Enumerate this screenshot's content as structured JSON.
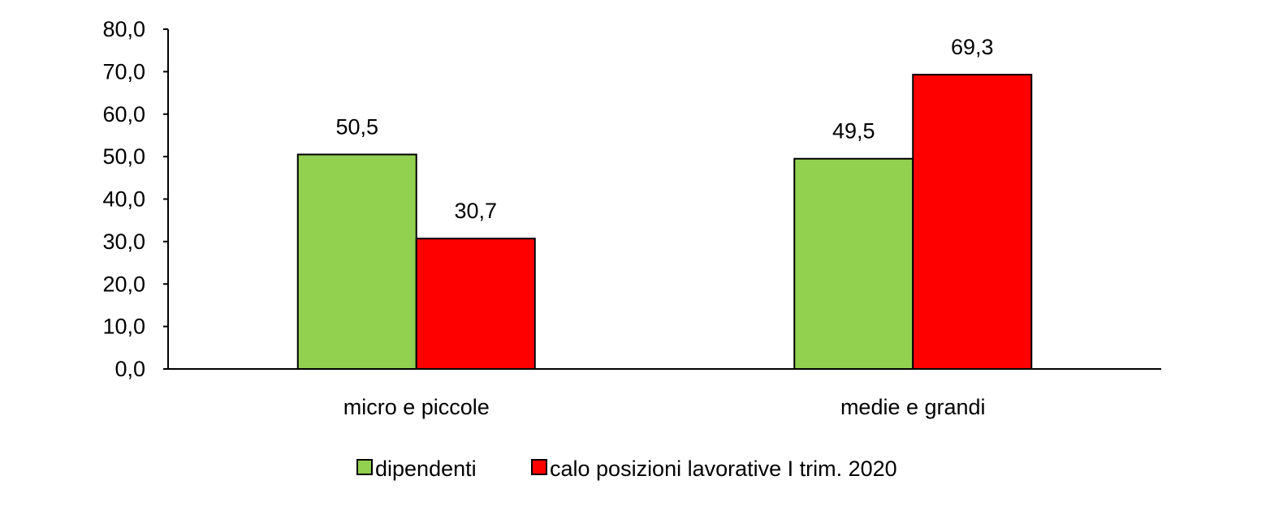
{
  "chart_data": {
    "type": "bar",
    "categories": [
      "micro e piccole",
      "medie  e grandi"
    ],
    "series": [
      {
        "name": "dipendenti",
        "color": "#92d050",
        "values": [
          50.5,
          49.5
        ],
        "value_labels": [
          "50,5",
          "49,5"
        ]
      },
      {
        "name": "calo posizioni lavorative I trim. 2020",
        "color": "#ff0000",
        "values": [
          30.7,
          69.3
        ],
        "value_labels": [
          "30,7",
          "69,3"
        ]
      }
    ],
    "title": "",
    "xlabel": "",
    "ylabel": "",
    "ylim": [
      0,
      80
    ],
    "yticks": [
      0,
      10,
      20,
      30,
      40,
      50,
      60,
      70,
      80
    ],
    "ytick_labels": [
      "0,0",
      "10,0",
      "20,0",
      "30,0",
      "40,0",
      "50,0",
      "60,0",
      "70,0",
      "80,0"
    ],
    "grid": false,
    "legend_position": "bottom"
  }
}
